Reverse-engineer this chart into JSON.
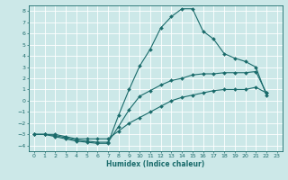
{
  "xlabel": "Humidex (Indice chaleur)",
  "bg_color": "#cce8e8",
  "grid_color": "#ffffff",
  "line_color": "#1a6b6b",
  "xlim": [
    -0.5,
    23.5
  ],
  "ylim": [
    -4.5,
    8.5
  ],
  "xticks": [
    0,
    1,
    2,
    3,
    4,
    5,
    6,
    7,
    8,
    9,
    10,
    11,
    12,
    13,
    14,
    15,
    16,
    17,
    18,
    19,
    20,
    21,
    22,
    23
  ],
  "yticks": [
    -4,
    -3,
    -2,
    -1,
    0,
    1,
    2,
    3,
    4,
    5,
    6,
    7,
    8
  ],
  "line1_x": [
    0,
    1,
    2,
    3,
    4,
    5,
    6,
    7,
    8,
    9,
    10,
    11,
    12,
    13,
    14,
    15,
    16,
    17,
    18,
    19,
    20,
    21,
    22
  ],
  "line1_y": [
    -3,
    -3,
    -3.2,
    -3.4,
    -3.6,
    -3.7,
    -3.8,
    -3.8,
    -1.3,
    1.0,
    3.1,
    4.6,
    6.5,
    7.5,
    8.2,
    8.2,
    6.2,
    5.5,
    4.2,
    3.8,
    3.5,
    3.0,
    0.5
  ],
  "line2_x": [
    0,
    1,
    2,
    3,
    4,
    5,
    6,
    7,
    8,
    9,
    10,
    11,
    12,
    13,
    14,
    15,
    16,
    17,
    18,
    19,
    20,
    21,
    22
  ],
  "line2_y": [
    -3,
    -3,
    -3.1,
    -3.3,
    -3.5,
    -3.6,
    -3.7,
    -3.7,
    -2.3,
    -0.8,
    0.4,
    0.9,
    1.4,
    1.8,
    2.0,
    2.3,
    2.4,
    2.4,
    2.5,
    2.5,
    2.5,
    2.6,
    0.7
  ],
  "line3_x": [
    0,
    1,
    2,
    3,
    4,
    5,
    6,
    7,
    8,
    9,
    10,
    11,
    12,
    13,
    14,
    15,
    16,
    17,
    18,
    19,
    20,
    21,
    22
  ],
  "line3_y": [
    -3,
    -3,
    -3.0,
    -3.2,
    -3.4,
    -3.4,
    -3.4,
    -3.4,
    -2.7,
    -2.0,
    -1.5,
    -1.0,
    -0.5,
    0.0,
    0.3,
    0.5,
    0.7,
    0.9,
    1.0,
    1.0,
    1.0,
    1.2,
    0.7
  ]
}
